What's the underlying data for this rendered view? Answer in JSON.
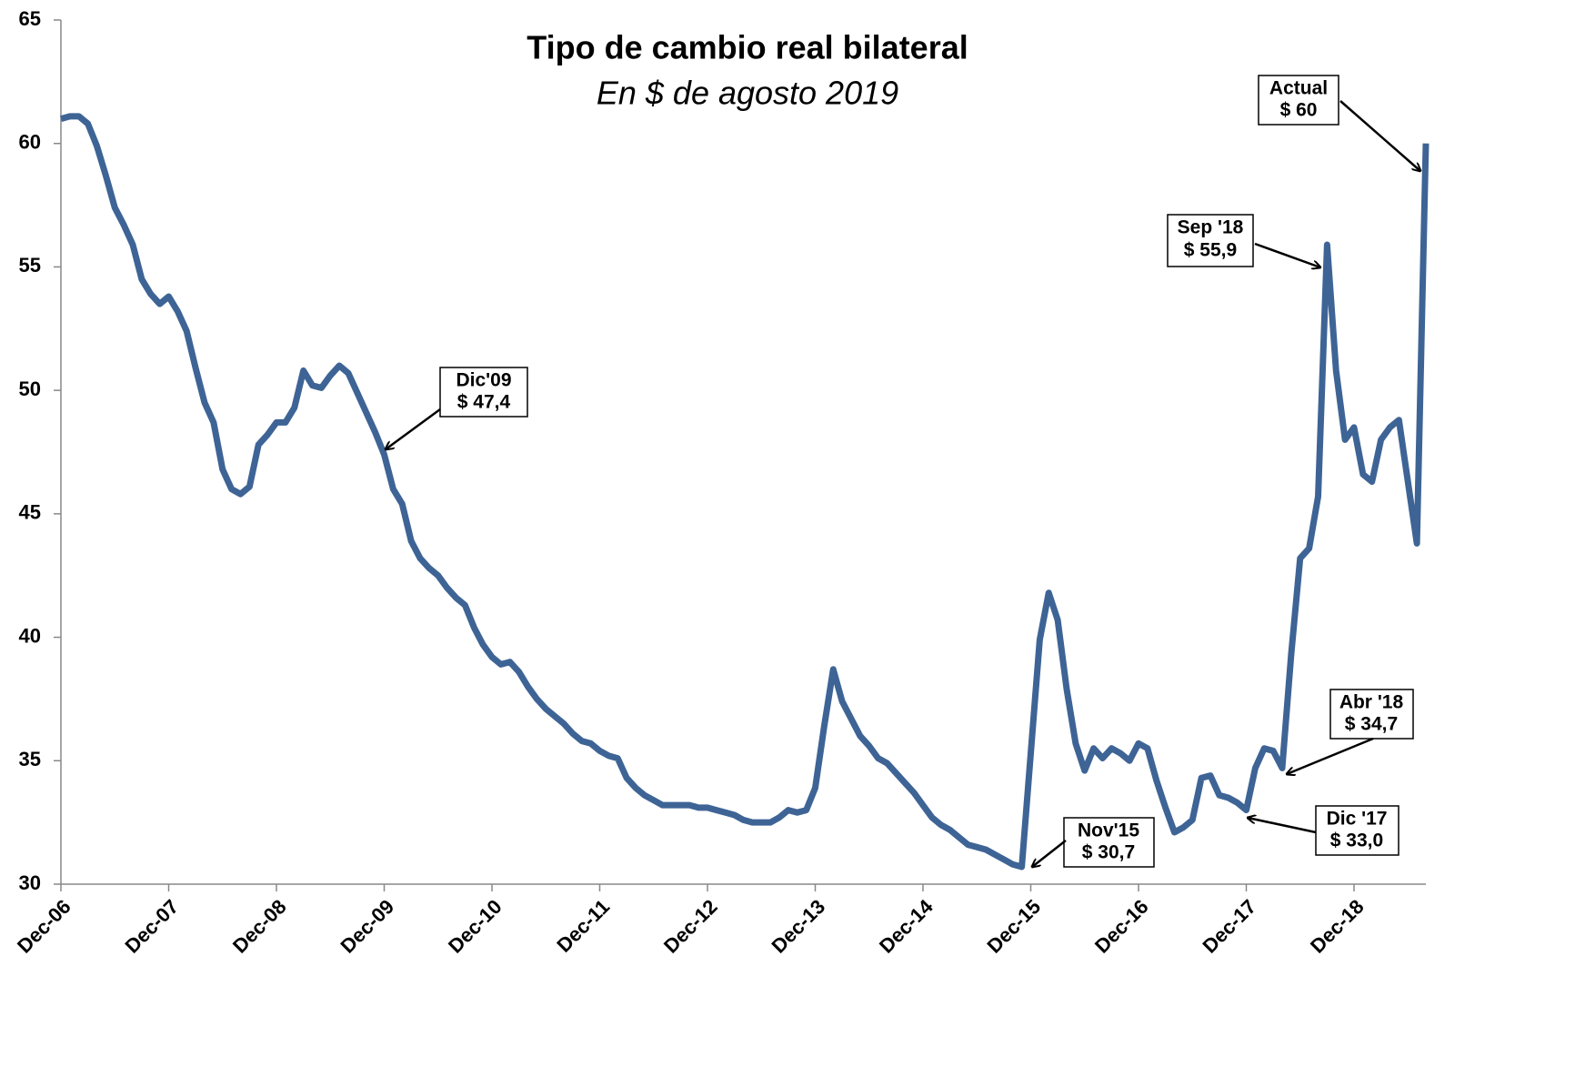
{
  "chart_data": {
    "type": "line",
    "title": "Tipo de cambio real bilateral",
    "subtitle": "En $ de agosto 2019",
    "categories": [
      "Dec-06",
      null,
      null,
      null,
      null,
      null,
      null,
      null,
      null,
      null,
      null,
      null,
      "Dec-07",
      null,
      null,
      null,
      null,
      null,
      null,
      null,
      null,
      null,
      null,
      null,
      "Dec-08",
      null,
      null,
      null,
      null,
      null,
      null,
      null,
      null,
      null,
      null,
      null,
      "Dec-09",
      null,
      null,
      null,
      null,
      null,
      null,
      null,
      null,
      null,
      null,
      null,
      "Dec-10",
      null,
      null,
      null,
      null,
      null,
      null,
      null,
      null,
      null,
      null,
      null,
      "Dec-11",
      null,
      null,
      null,
      null,
      null,
      null,
      null,
      null,
      null,
      null,
      null,
      "Dec-12",
      null,
      null,
      null,
      null,
      null,
      null,
      null,
      null,
      null,
      null,
      null,
      "Dec-13",
      null,
      null,
      null,
      null,
      null,
      null,
      null,
      null,
      null,
      null,
      null,
      "Dec-14",
      null,
      null,
      null,
      null,
      null,
      null,
      null,
      null,
      null,
      null,
      null,
      "Dec-15",
      null,
      null,
      null,
      null,
      null,
      null,
      null,
      null,
      null,
      null,
      null,
      "Dec-16",
      null,
      null,
      null,
      null,
      null,
      null,
      null,
      null,
      null,
      null,
      null,
      "Dec-17",
      null,
      null,
      null,
      null,
      null,
      null,
      null,
      null,
      null,
      null,
      null,
      "Dec-18",
      null,
      null,
      null,
      null,
      null,
      null,
      null,
      null
    ],
    "series": [
      {
        "color": "#3e6496",
        "values": [
          61.0,
          61.1,
          61.1,
          60.8,
          59.9,
          58.7,
          57.4,
          56.7,
          55.9,
          54.5,
          53.9,
          53.5,
          53.8,
          53.2,
          52.4,
          50.9,
          49.5,
          48.7,
          46.8,
          46.0,
          45.8,
          46.1,
          47.8,
          48.2,
          48.7,
          48.7,
          49.3,
          50.8,
          50.2,
          50.1,
          50.6,
          51.0,
          50.7,
          49.9,
          49.1,
          48.3,
          47.4,
          46.0,
          45.4,
          43.9,
          43.2,
          42.8,
          42.5,
          42.0,
          41.6,
          41.3,
          40.4,
          39.7,
          39.2,
          38.9,
          39.0,
          38.6,
          38.0,
          37.5,
          37.1,
          36.8,
          36.5,
          36.1,
          35.8,
          35.7,
          35.4,
          35.2,
          35.1,
          34.3,
          33.9,
          33.6,
          33.4,
          33.2,
          33.2,
          33.2,
          33.2,
          33.1,
          33.1,
          33.0,
          32.9,
          32.8,
          32.6,
          32.5,
          32.5,
          32.5,
          32.7,
          33.0,
          32.9,
          33.0,
          33.9,
          36.4,
          38.7,
          37.4,
          36.7,
          36.0,
          35.6,
          35.1,
          34.9,
          34.5,
          34.1,
          33.7,
          33.2,
          32.7,
          32.4,
          32.2,
          31.9,
          31.6,
          31.5,
          31.4,
          31.2,
          31.0,
          30.8,
          30.7,
          35.3,
          39.9,
          41.8,
          40.7,
          37.9,
          35.7,
          34.6,
          35.5,
          35.1,
          35.5,
          35.3,
          35.0,
          35.7,
          35.5,
          34.2,
          33.1,
          32.1,
          32.3,
          32.6,
          34.3,
          34.4,
          33.6,
          33.5,
          33.3,
          33.0,
          34.7,
          35.5,
          35.4,
          34.7,
          39.3,
          43.2,
          43.6,
          45.7,
          55.9,
          50.8,
          48.0,
          48.5,
          46.6,
          46.3,
          48.0,
          48.5,
          48.8,
          46.3,
          43.8,
          60.0
        ]
      }
    ],
    "ylim": [
      30,
      65
    ],
    "yticks": [
      30,
      35,
      40,
      45,
      50,
      55,
      60,
      65
    ],
    "annotations": [
      {
        "lines": [
          "Dic'09",
          "$ 47,4"
        ]
      },
      {
        "lines": [
          "Nov'15",
          "$ 30,7"
        ]
      },
      {
        "lines": [
          "Dic '17",
          "$ 33,0"
        ]
      },
      {
        "lines": [
          "Abr '18",
          "$ 34,7"
        ]
      },
      {
        "lines": [
          "Sep '18",
          "$ 55,9"
        ]
      },
      {
        "lines": [
          "Actual",
          "$ 60"
        ]
      }
    ]
  }
}
